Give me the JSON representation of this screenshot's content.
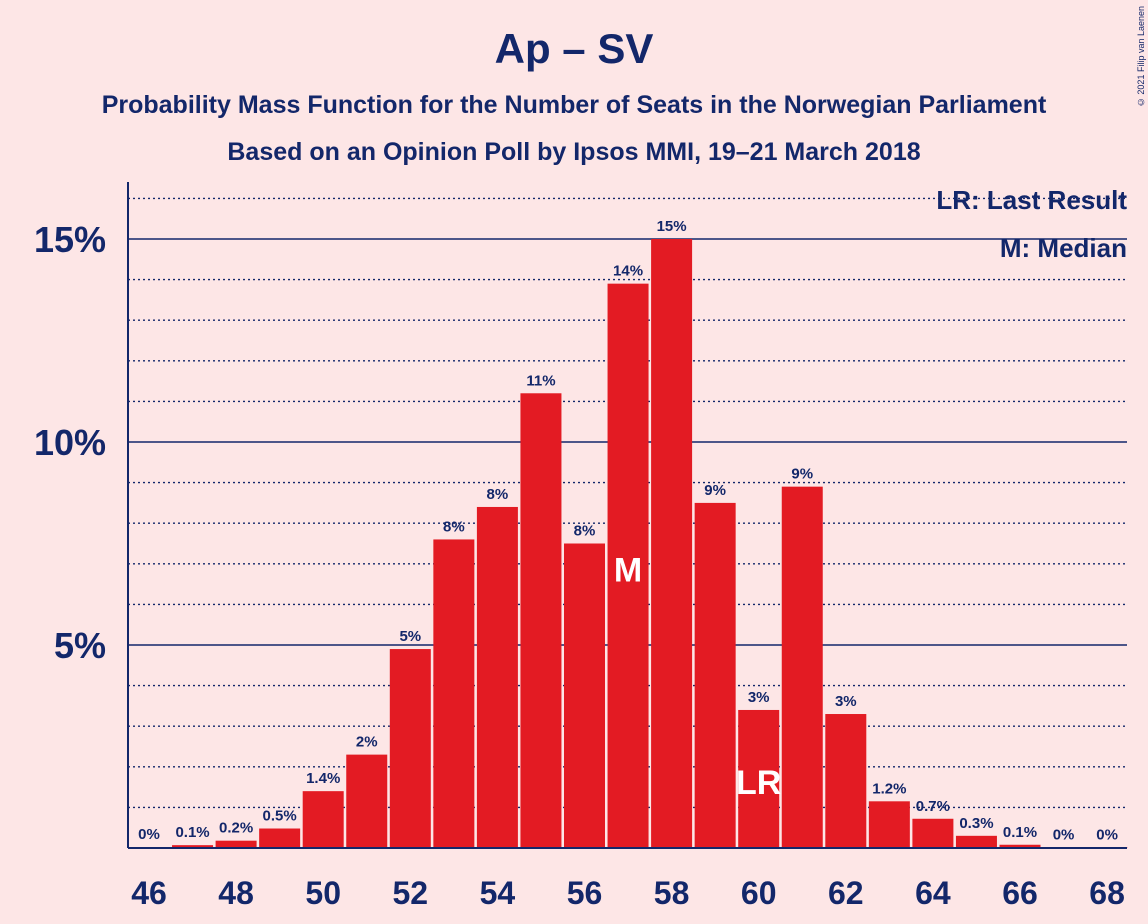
{
  "title": "Ap – SV",
  "subtitle1": "Probability Mass Function for the Number of Seats in the Norwegian Parliament",
  "subtitle2": "Based on an Opinion Poll by Ipsos MMI, 19–21 March 2018",
  "copyright": "© 2021 Filip van Laenen",
  "legend": {
    "lr": "LR: Last Result",
    "m": "M: Median"
  },
  "colors": {
    "background": "#fde6e6",
    "bar": "#e31b23",
    "text": "#13276a"
  },
  "chart_data": {
    "type": "bar",
    "x": [
      46,
      47,
      48,
      49,
      50,
      51,
      52,
      53,
      54,
      55,
      56,
      57,
      58,
      59,
      60,
      61,
      62,
      63,
      64,
      65,
      66,
      67,
      68
    ],
    "values": [
      0.02,
      0.07,
      0.18,
      0.48,
      1.4,
      2.3,
      4.9,
      7.6,
      8.4,
      11.2,
      7.5,
      13.9,
      15.0,
      8.5,
      3.4,
      8.9,
      3.3,
      1.15,
      0.72,
      0.3,
      0.08,
      0.01,
      0.01
    ],
    "labels": [
      "0%",
      "0.1%",
      "0.2%",
      "0.5%",
      "1.4%",
      "2%",
      "5%",
      "8%",
      "8%",
      "11%",
      "8%",
      "14%",
      "15%",
      "9%",
      "3%",
      "9%",
      "3%",
      "1.2%",
      "0.7%",
      "0.3%",
      "0.1%",
      "0%",
      "0%"
    ],
    "xticks": [
      46,
      48,
      50,
      52,
      54,
      56,
      58,
      60,
      62,
      64,
      66,
      68
    ],
    "yticks": [
      {
        "value": 5,
        "label": "5%"
      },
      {
        "value": 10,
        "label": "10%"
      },
      {
        "value": 15,
        "label": "15%"
      }
    ],
    "ylim": [
      0,
      16.4
    ],
    "median": 57,
    "median_label": "M",
    "last_result": 60,
    "last_result_label": "LR"
  }
}
